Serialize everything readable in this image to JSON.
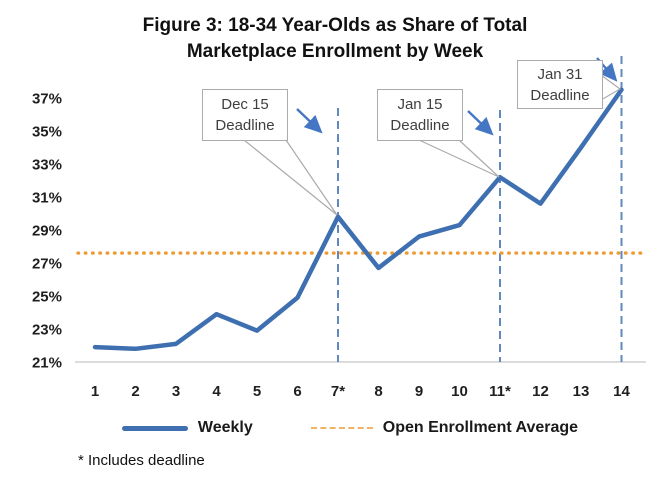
{
  "figure": {
    "title_line1": "Figure 3: 18-34 Year-Olds as Share of Total",
    "title_line2": "Marketplace Enrollment by Week",
    "footnote": "* Includes deadline"
  },
  "legend": {
    "weekly": "Weekly",
    "average": "Open Enrollment Average"
  },
  "annotations": {
    "dec15": {
      "line1": "Dec 15",
      "line2": "Deadline"
    },
    "jan15": {
      "line1": "Jan 15",
      "line2": "Deadline"
    },
    "jan31": {
      "line1": "Jan 31",
      "line2": "Deadline"
    }
  },
  "colors": {
    "weekly_line": "#3E6FB1",
    "average_line": "#ED9C33",
    "deadline_dashed_line": "#6289BE",
    "callout_arrow": "#4576C4",
    "callout_border": "#ABABAB",
    "callout_text": "#404040",
    "axis_text": "#1F1F1F",
    "axis_line": "#C6C6C6"
  },
  "chart_data": {
    "type": "line",
    "title": "Figure 3: 18-34 Year-Olds as Share of Total Marketplace Enrollment by Week",
    "xlabel": "",
    "ylabel": "",
    "x": [
      1,
      2,
      3,
      4,
      5,
      6,
      7,
      8,
      9,
      10,
      11,
      12,
      13,
      14
    ],
    "x_tick_labels": [
      "1",
      "2",
      "3",
      "4",
      "5",
      "6",
      "7*",
      "8",
      "9",
      "10",
      "11*",
      "12",
      "13",
      "14"
    ],
    "y_tick_labels": [
      "21%",
      "23%",
      "25%",
      "27%",
      "29%",
      "31%",
      "33%",
      "35%",
      "37%"
    ],
    "ylim": [
      21,
      37
    ],
    "y_tick_step": 2,
    "grid": false,
    "legend_position": "bottom",
    "series": [
      {
        "name": "Weekly",
        "values": [
          21.9,
          21.8,
          22.1,
          23.9,
          22.9,
          24.9,
          29.8,
          26.7,
          28.6,
          29.3,
          32.2,
          30.6,
          34.0,
          37.5
        ]
      },
      {
        "name": "Open Enrollment Average",
        "type": "constant",
        "value": 27.6
      }
    ],
    "deadline_markers": [
      {
        "week": 7,
        "label": "Dec 15 Deadline"
      },
      {
        "week": 11,
        "label": "Jan 15 Deadline"
      },
      {
        "week": 14,
        "label": "Jan 31 Deadline"
      }
    ],
    "footnote": "* Includes deadline"
  }
}
